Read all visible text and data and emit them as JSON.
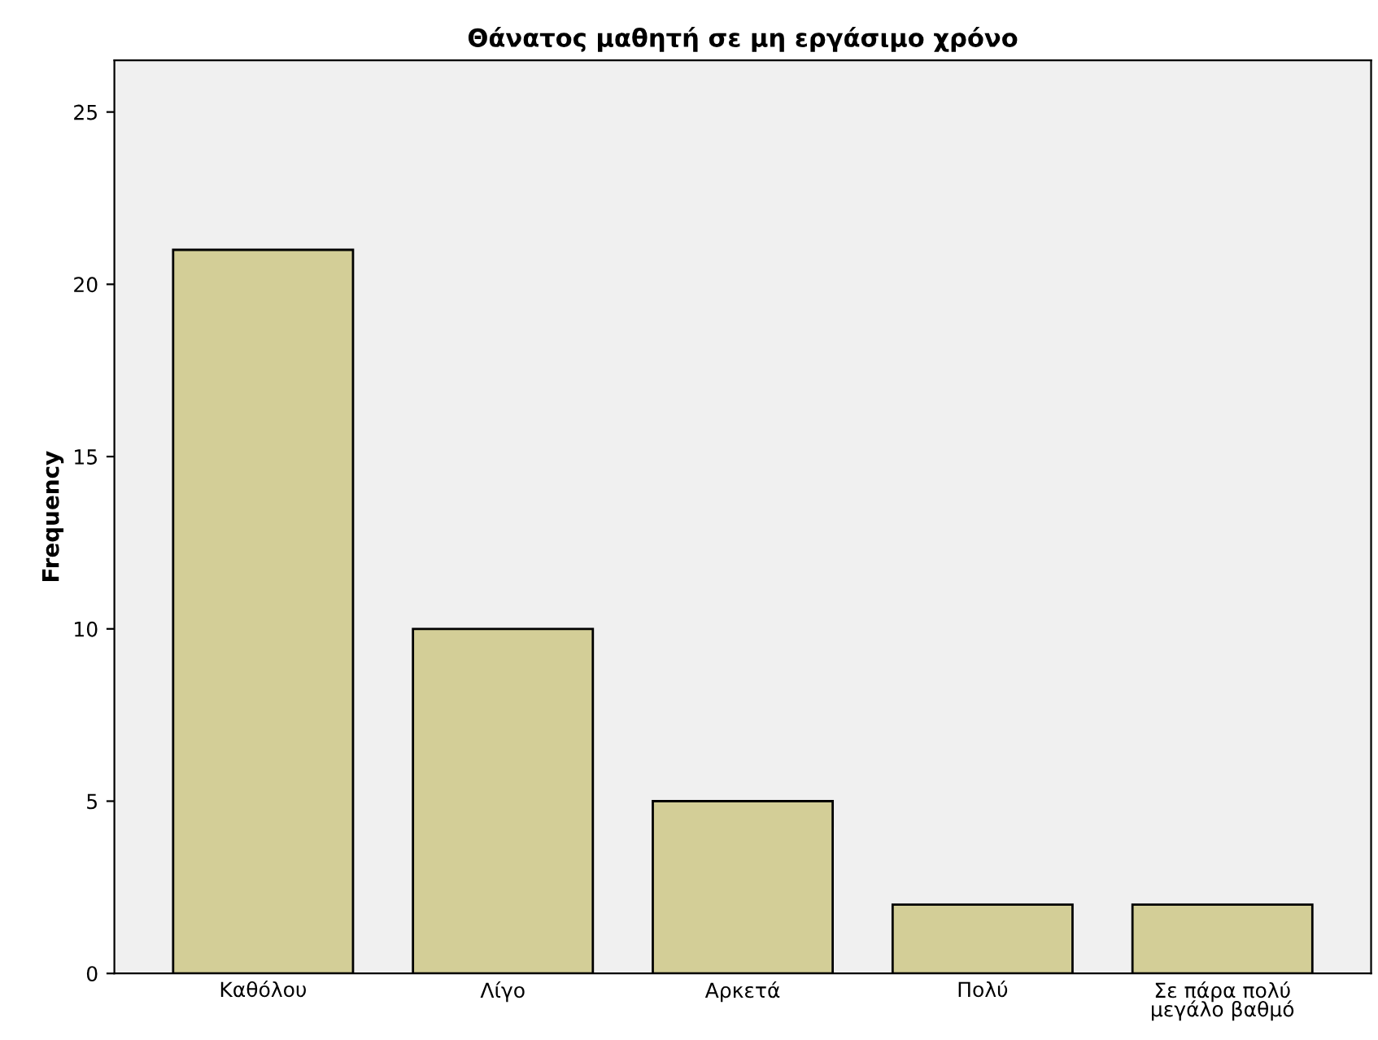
{
  "chart_data": {
    "type": "bar",
    "title": "Θάνατος μαθητή σε μη εργάσιμο χρόνο",
    "ylabel": "Frequency",
    "categories": [
      "Καθόλου",
      "Λίγο",
      "Αρκετά",
      "Πολύ",
      "Σε πάρα πολύ\nμεγάλο βαθμό"
    ],
    "values": [
      21,
      10,
      5,
      2,
      2
    ],
    "color": "#d3ce97",
    "ylim": [
      0,
      26.5
    ],
    "yticks": [
      0,
      5,
      10,
      15,
      20,
      25
    ],
    "grid": false,
    "legend": false
  }
}
